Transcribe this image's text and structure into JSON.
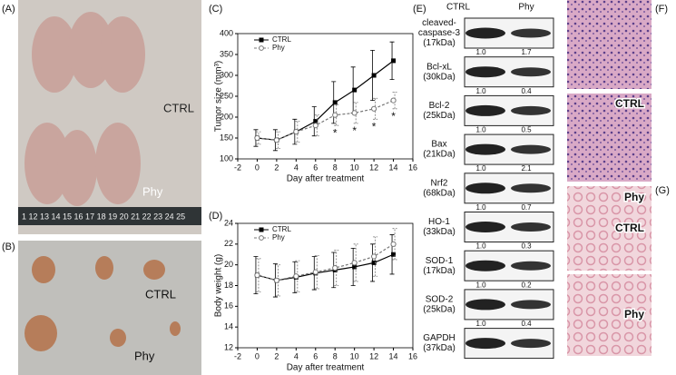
{
  "panel_labels": [
    "(A)",
    "(B)",
    "(C)",
    "(D)",
    "(E)",
    "(F)",
    "(G)"
  ],
  "photo_a": {
    "ruler": "1 12 13 14 15 16 17 18 19 20 21 22 23 24 25",
    "labels": [
      "CTRL",
      "Phy"
    ]
  },
  "photo_b": {
    "labels": [
      "CTRL",
      "Phy"
    ]
  },
  "chart_data": [
    {
      "type": "line",
      "ylabel": "Tumor size (mm³)",
      "xlabel": "Day after treatment",
      "x": [
        0,
        2,
        4,
        6,
        8,
        10,
        12,
        14
      ],
      "xlim": [
        -2,
        16
      ],
      "xticks": [
        -2,
        0,
        2,
        4,
        6,
        8,
        10,
        12,
        14,
        16
      ],
      "ylim": [
        100,
        400
      ],
      "yticks": [
        100,
        150,
        200,
        250,
        300,
        350,
        400
      ],
      "legend": "upper left",
      "series": [
        {
          "name": "CTRL",
          "color": "#000000",
          "values": [
            150,
            145,
            165,
            190,
            235,
            265,
            300,
            335
          ],
          "errors": [
            20,
            25,
            30,
            35,
            50,
            55,
            60,
            45
          ]
        },
        {
          "name": "Phy",
          "color": "#777777",
          "values": [
            150,
            145,
            165,
            180,
            205,
            210,
            220,
            240
          ],
          "errors": [
            15,
            20,
            25,
            25,
            25,
            25,
            25,
            20
          ]
        }
      ],
      "annotations": [
        {
          "x": 8,
          "text": "*"
        },
        {
          "x": 10,
          "text": "*"
        },
        {
          "x": 12,
          "text": "*"
        },
        {
          "x": 14,
          "text": "*"
        }
      ]
    },
    {
      "type": "line",
      "ylabel": "Body weight (g)",
      "xlabel": "Day after treatment",
      "x": [
        0,
        2,
        4,
        6,
        8,
        10,
        12,
        14
      ],
      "xlim": [
        -2,
        16
      ],
      "xticks": [
        -2,
        0,
        2,
        4,
        6,
        8,
        10,
        12,
        14,
        16
      ],
      "ylim": [
        12,
        24
      ],
      "yticks": [
        12,
        14,
        16,
        18,
        20,
        22,
        24
      ],
      "legend": "upper left",
      "series": [
        {
          "name": "CTRL",
          "color": "#000000",
          "values": [
            19,
            18.5,
            18.8,
            19.2,
            19.5,
            19.8,
            20.2,
            21
          ],
          "errors": [
            1.8,
            1.6,
            1.5,
            1.6,
            1.7,
            1.8,
            1.8,
            1.9
          ]
        },
        {
          "name": "Phy",
          "color": "#777777",
          "values": [
            19,
            18.5,
            18.9,
            19.3,
            19.7,
            20.2,
            20.8,
            22
          ],
          "errors": [
            1.6,
            1.5,
            1.5,
            1.6,
            1.7,
            1.8,
            1.9,
            1.5
          ]
        }
      ]
    }
  ],
  "western_blot": {
    "columns": [
      "CTRL",
      "Phy"
    ],
    "rows": [
      {
        "name_lines": [
          "cleaved-",
          "caspase-3"
        ],
        "size": "(17kDa)",
        "ratios": [
          "1.0",
          "1.7"
        ]
      },
      {
        "name_lines": [
          "Bcl-xL"
        ],
        "size": "(30kDa)",
        "ratios": [
          "1.0",
          "0.4"
        ]
      },
      {
        "name_lines": [
          "Bcl-2"
        ],
        "size": "(25kDa)",
        "ratios": [
          "1.0",
          "0.5"
        ]
      },
      {
        "name_lines": [
          "Bax"
        ],
        "size": "(21kDa)",
        "ratios": [
          "1.0",
          "2.1"
        ]
      },
      {
        "name_lines": [
          "Nrf2"
        ],
        "size": "(68kDa)",
        "ratios": [
          "1.0",
          "0.7"
        ]
      },
      {
        "name_lines": [
          "HO-1"
        ],
        "size": "(33kDa)",
        "ratios": [
          "1.0",
          "0.3"
        ]
      },
      {
        "name_lines": [
          "SOD-1"
        ],
        "size": "(17kDa)",
        "ratios": [
          "1.0",
          "0.2"
        ]
      },
      {
        "name_lines": [
          "SOD-2"
        ],
        "size": "(25kDa)",
        "ratios": [
          "1.0",
          "0.4"
        ]
      },
      {
        "name_lines": [
          "GAPDH"
        ],
        "size": "(37kDa)",
        "ratios": []
      }
    ]
  },
  "histology_f": [
    "CTRL",
    "Phy"
  ],
  "histology_g": [
    "CTRL",
    "Phy"
  ]
}
